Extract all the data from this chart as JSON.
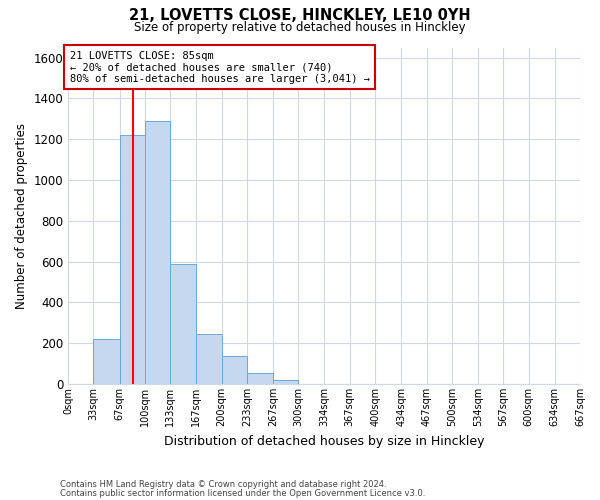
{
  "title_line1": "21, LOVETTS CLOSE, HINCKLEY, LE10 0YH",
  "title_line2": "Size of property relative to detached houses in Hinckley",
  "xlabel": "Distribution of detached houses by size in Hinckley",
  "ylabel": "Number of detached properties",
  "footnote1": "Contains HM Land Registry data © Crown copyright and database right 2024.",
  "footnote2": "Contains public sector information licensed under the Open Government Licence v3.0.",
  "annotation_line1": "21 LOVETTS CLOSE: 85sqm",
  "annotation_line2": "← 20% of detached houses are smaller (740)",
  "annotation_line3": "80% of semi-detached houses are larger (3,041) →",
  "property_line_x": 85,
  "bar_edges": [
    0,
    33,
    67,
    100,
    133,
    167,
    200,
    233,
    267,
    300,
    334,
    367,
    400,
    434,
    467,
    500,
    534,
    567,
    600,
    634,
    667
  ],
  "bar_heights": [
    0,
    220,
    1220,
    1290,
    590,
    245,
    135,
    55,
    20,
    0,
    0,
    0,
    0,
    0,
    0,
    0,
    0,
    0,
    0,
    0
  ],
  "bar_color": "#c5d8f0",
  "bar_edge_color": "#6fa8d5",
  "property_line_color": "#ff0000",
  "annotation_box_edge_color": "#cc0000",
  "annotation_box_face_color": "#ffffff",
  "ylim": [
    0,
    1650
  ],
  "yticks": [
    0,
    200,
    400,
    600,
    800,
    1000,
    1200,
    1400,
    1600
  ],
  "grid_color": "#d0d8e8",
  "background_color": "#ffffff",
  "tick_labels": [
    "0sqm",
    "33sqm",
    "67sqm",
    "100sqm",
    "133sqm",
    "167sqm",
    "200sqm",
    "233sqm",
    "267sqm",
    "300sqm",
    "334sqm",
    "367sqm",
    "400sqm",
    "434sqm",
    "467sqm",
    "500sqm",
    "534sqm",
    "567sqm",
    "600sqm",
    "634sqm",
    "667sqm"
  ]
}
